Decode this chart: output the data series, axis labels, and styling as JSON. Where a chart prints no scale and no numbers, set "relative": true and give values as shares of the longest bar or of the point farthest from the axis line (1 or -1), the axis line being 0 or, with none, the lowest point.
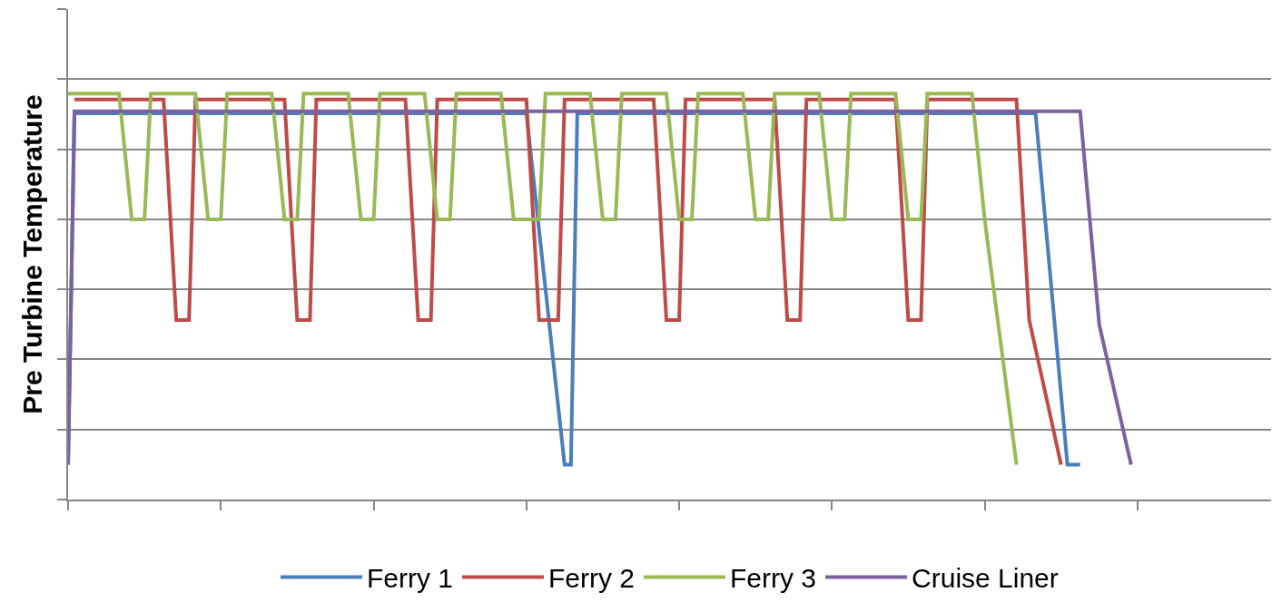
{
  "chart_data": {
    "type": "line",
    "ylabel": "Pre Turbine Temperature",
    "relative": true,
    "grid": "y",
    "legend": "bottom",
    "marker": "none",
    "line_style": "solid",
    "categories": [
      null,
      null,
      null,
      null,
      null,
      null,
      null,
      null,
      null,
      null,
      null,
      null,
      null,
      null,
      null,
      null,
      null,
      null,
      null,
      null,
      null,
      null,
      null,
      null,
      null,
      null,
      null,
      null,
      null,
      null,
      null,
      null,
      null,
      null,
      null,
      null,
      null,
      null,
      null,
      null,
      null,
      null,
      null,
      null,
      null,
      null,
      null,
      null,
      null,
      null,
      null,
      null,
      null,
      null,
      null,
      null,
      null,
      null,
      null,
      null,
      null,
      null,
      null,
      null,
      null,
      null,
      null,
      null,
      null,
      null,
      null,
      null,
      null,
      null,
      null,
      null,
      null,
      null,
      null,
      null,
      null,
      null,
      null,
      null,
      null,
      null,
      null,
      null,
      null,
      null,
      null,
      null,
      null,
      null,
      null,
      null,
      null,
      null,
      null,
      null,
      null,
      null,
      null,
      null,
      null,
      null,
      null,
      null,
      null,
      null,
      null,
      null,
      null,
      null,
      null,
      null,
      null,
      null,
      null,
      null,
      null,
      null,
      null,
      null,
      null,
      null,
      null,
      null,
      null,
      null,
      null,
      null,
      null,
      null,
      null,
      null,
      null,
      null,
      null,
      null,
      null,
      null,
      null,
      null,
      null,
      null,
      null,
      null,
      null,
      null,
      null,
      null,
      null,
      null,
      null,
      null,
      null,
      null,
      null,
      null,
      null,
      null,
      null,
      null,
      null,
      null,
      null,
      null,
      null,
      null,
      null,
      null,
      null,
      null,
      null,
      null,
      null,
      null,
      null,
      null,
      null,
      null,
      null,
      null,
      null,
      null,
      null,
      null,
      null,
      null
    ],
    "series": [
      {
        "name": "Ferry 1",
        "color": "#4a7ebb",
        "values": [
          0.086,
          0.951,
          0.951,
          0.951,
          0.951,
          0.951,
          0.951,
          0.951,
          0.951,
          0.951,
          0.951,
          0.951,
          0.951,
          0.951,
          0.951,
          0.951,
          0.951,
          0.951,
          0.951,
          0.951,
          0.951,
          0.951,
          0.951,
          0.951,
          0.951,
          0.951,
          0.951,
          0.951,
          0.951,
          0.951,
          0.951,
          0.951,
          0.951,
          0.951,
          0.951,
          0.951,
          0.951,
          0.951,
          0.951,
          0.951,
          0.951,
          0.951,
          0.951,
          0.951,
          0.951,
          0.951,
          0.951,
          0.951,
          0.951,
          0.951,
          0.951,
          0.951,
          0.951,
          0.951,
          0.951,
          0.951,
          0.951,
          0.951,
          0.951,
          0.951,
          0.951,
          0.951,
          0.951,
          0.951,
          0.951,
          0.951,
          0.951,
          0.951,
          0.951,
          0.951,
          0.951,
          0.951,
          0.951,
          0.807,
          0.663,
          0.519,
          0.374,
          0.23,
          0.086,
          0.086,
          0.951,
          0.951,
          0.951,
          0.951,
          0.951,
          0.951,
          0.951,
          0.951,
          0.951,
          0.951,
          0.951,
          0.951,
          0.951,
          0.951,
          0.951,
          0.951,
          0.951,
          0.951,
          0.951,
          0.951,
          0.951,
          0.951,
          0.951,
          0.951,
          0.951,
          0.951,
          0.951,
          0.951,
          0.951,
          0.951,
          0.951,
          0.951,
          0.951,
          0.951,
          0.951,
          0.951,
          0.951,
          0.951,
          0.951,
          0.951,
          0.951,
          0.951,
          0.951,
          0.951,
          0.951,
          0.951,
          0.951,
          0.951,
          0.951,
          0.951,
          0.951,
          0.951,
          0.951,
          0.951,
          0.951,
          0.951,
          0.951,
          0.951,
          0.951,
          0.951,
          0.951,
          0.951,
          0.951,
          0.951,
          0.951,
          0.951,
          0.951,
          0.951,
          0.951,
          0.951,
          0.951,
          0.951,
          0.951,
          0.778,
          0.605,
          0.432,
          0.259,
          0.086,
          0.086,
          0.086,
          null,
          null,
          null,
          null,
          null,
          null,
          null,
          null,
          null,
          null,
          null,
          null,
          null,
          null,
          null,
          null,
          null,
          null,
          null,
          null,
          null,
          null,
          null,
          null,
          null,
          null,
          null,
          null,
          null,
          null
        ]
      },
      {
        "name": "Ferry 2",
        "color": "#be4b48",
        "values": [
          null,
          0.985,
          0.985,
          0.985,
          0.985,
          0.985,
          0.985,
          0.985,
          0.985,
          0.985,
          0.985,
          0.985,
          0.985,
          0.985,
          0.985,
          0.985,
          0.714,
          0.442,
          0.442,
          0.442,
          0.985,
          0.985,
          0.985,
          0.985,
          0.985,
          0.985,
          0.985,
          0.985,
          0.985,
          0.985,
          0.985,
          0.985,
          0.985,
          0.985,
          0.985,
          0.714,
          0.442,
          0.442,
          0.442,
          0.985,
          0.985,
          0.985,
          0.985,
          0.985,
          0.985,
          0.985,
          0.985,
          0.985,
          0.985,
          0.985,
          0.985,
          0.985,
          0.985,
          0.985,
          0.714,
          0.442,
          0.442,
          0.442,
          0.985,
          0.985,
          0.985,
          0.985,
          0.985,
          0.985,
          0.985,
          0.985,
          0.985,
          0.985,
          0.985,
          0.985,
          0.985,
          0.985,
          0.985,
          0.714,
          0.442,
          0.442,
          0.442,
          0.442,
          0.985,
          0.985,
          0.985,
          0.985,
          0.985,
          0.985,
          0.985,
          0.985,
          0.985,
          0.985,
          0.985,
          0.985,
          0.985,
          0.985,
          0.985,
          0.714,
          0.442,
          0.442,
          0.442,
          0.985,
          0.985,
          0.985,
          0.985,
          0.985,
          0.985,
          0.985,
          0.985,
          0.985,
          0.985,
          0.985,
          0.985,
          0.985,
          0.985,
          0.985,
          0.714,
          0.442,
          0.442,
          0.442,
          0.985,
          0.985,
          0.985,
          0.985,
          0.985,
          0.985,
          0.985,
          0.985,
          0.985,
          0.985,
          0.985,
          0.985,
          0.985,
          0.985,
          0.985,
          0.714,
          0.442,
          0.442,
          0.442,
          0.985,
          0.985,
          0.985,
          0.985,
          0.985,
          0.985,
          0.985,
          0.985,
          0.985,
          0.985,
          0.985,
          0.985,
          0.985,
          0.985,
          0.985,
          0.714,
          0.442,
          0.371,
          0.3,
          0.229,
          0.157,
          0.086,
          null,
          null,
          null,
          null,
          null,
          null,
          null,
          null,
          null,
          null,
          null,
          null,
          null,
          null,
          null,
          null,
          null,
          null,
          null,
          null,
          null,
          null,
          null,
          null,
          null,
          null,
          null,
          null,
          null,
          null,
          null,
          null,
          null
        ]
      },
      {
        "name": "Ferry 3",
        "color": "#98b954",
        "values": [
          1,
          1,
          1,
          1,
          1,
          1,
          1,
          1,
          1,
          0.845,
          0.69,
          0.69,
          0.69,
          1,
          1,
          1,
          1,
          1,
          1,
          1,
          1,
          0.845,
          0.69,
          0.69,
          0.69,
          1,
          1,
          1,
          1,
          1,
          1,
          1,
          1,
          0.845,
          0.69,
          0.69,
          0.69,
          1,
          1,
          1,
          1,
          1,
          1,
          1,
          1,
          0.845,
          0.69,
          0.69,
          0.69,
          1,
          1,
          1,
          1,
          1,
          1,
          1,
          1,
          0.845,
          0.69,
          0.69,
          0.69,
          1,
          1,
          1,
          1,
          1,
          1,
          1,
          1,
          0.845,
          0.69,
          0.69,
          0.69,
          0.69,
          0.69,
          1,
          1,
          1,
          1,
          1,
          1,
          1,
          1,
          0.845,
          0.69,
          0.69,
          0.69,
          1,
          1,
          1,
          1,
          1,
          1,
          1,
          1,
          0.845,
          0.69,
          0.69,
          0.69,
          1,
          1,
          1,
          1,
          1,
          1,
          1,
          1,
          0.845,
          0.69,
          0.69,
          0.69,
          1,
          1,
          1,
          1,
          1,
          1,
          1,
          1,
          0.845,
          0.69,
          0.69,
          0.69,
          1,
          1,
          1,
          1,
          1,
          1,
          1,
          1,
          0.845,
          0.69,
          0.69,
          0.69,
          1,
          1,
          1,
          1,
          1,
          1,
          1,
          1,
          0.845,
          0.69,
          0.569,
          0.448,
          0.328,
          0.207,
          0.086,
          null,
          null,
          null,
          null,
          null,
          null,
          null,
          null,
          null,
          null,
          null,
          null,
          null,
          null,
          null,
          null,
          null,
          null,
          null,
          null,
          null,
          null,
          null,
          null,
          null,
          null,
          null,
          null,
          null,
          null,
          null,
          null,
          null,
          null,
          null,
          null,
          null,
          null,
          null,
          null
        ]
      },
      {
        "name": "Cruise Liner",
        "color": "#7d60a0",
        "values": [
          0.086,
          0.956,
          0.956,
          0.956,
          0.956,
          0.956,
          0.956,
          0.956,
          0.956,
          0.956,
          0.956,
          0.956,
          0.956,
          0.956,
          0.956,
          0.956,
          0.956,
          0.956,
          0.956,
          0.956,
          0.956,
          0.956,
          0.956,
          0.956,
          0.956,
          0.956,
          0.956,
          0.956,
          0.956,
          0.956,
          0.956,
          0.956,
          0.956,
          0.956,
          0.956,
          0.956,
          0.956,
          0.956,
          0.956,
          0.956,
          0.956,
          0.956,
          0.956,
          0.956,
          0.956,
          0.956,
          0.956,
          0.956,
          0.956,
          0.956,
          0.956,
          0.956,
          0.956,
          0.956,
          0.956,
          0.956,
          0.956,
          0.956,
          0.956,
          0.956,
          0.956,
          0.956,
          0.956,
          0.956,
          0.956,
          0.956,
          0.956,
          0.956,
          0.956,
          0.956,
          0.956,
          0.956,
          0.956,
          0.956,
          0.956,
          0.956,
          0.956,
          0.956,
          0.956,
          0.956,
          0.956,
          0.956,
          0.956,
          0.956,
          0.956,
          0.956,
          0.956,
          0.956,
          0.956,
          0.956,
          0.956,
          0.956,
          0.956,
          0.956,
          0.956,
          0.956,
          0.956,
          0.956,
          0.956,
          0.956,
          0.956,
          0.956,
          0.956,
          0.956,
          0.956,
          0.956,
          0.956,
          0.956,
          0.956,
          0.956,
          0.956,
          0.956,
          0.956,
          0.956,
          0.956,
          0.956,
          0.956,
          0.956,
          0.956,
          0.956,
          0.956,
          0.956,
          0.956,
          0.956,
          0.956,
          0.956,
          0.956,
          0.956,
          0.956,
          0.956,
          0.956,
          0.956,
          0.956,
          0.956,
          0.956,
          0.956,
          0.956,
          0.956,
          0.956,
          0.956,
          0.956,
          0.956,
          0.956,
          0.956,
          0.956,
          0.956,
          0.956,
          0.956,
          0.956,
          0.956,
          0.956,
          0.956,
          0.956,
          0.956,
          0.956,
          0.956,
          0.956,
          0.956,
          0.956,
          0.956,
          0.781,
          0.606,
          0.431,
          0.362,
          0.293,
          0.224,
          0.155,
          0.086,
          null,
          null,
          null,
          null,
          null,
          null,
          null,
          null,
          null,
          null,
          null,
          null,
          null,
          null,
          null,
          null,
          null,
          null,
          null,
          null,
          null,
          null
        ]
      }
    ]
  }
}
